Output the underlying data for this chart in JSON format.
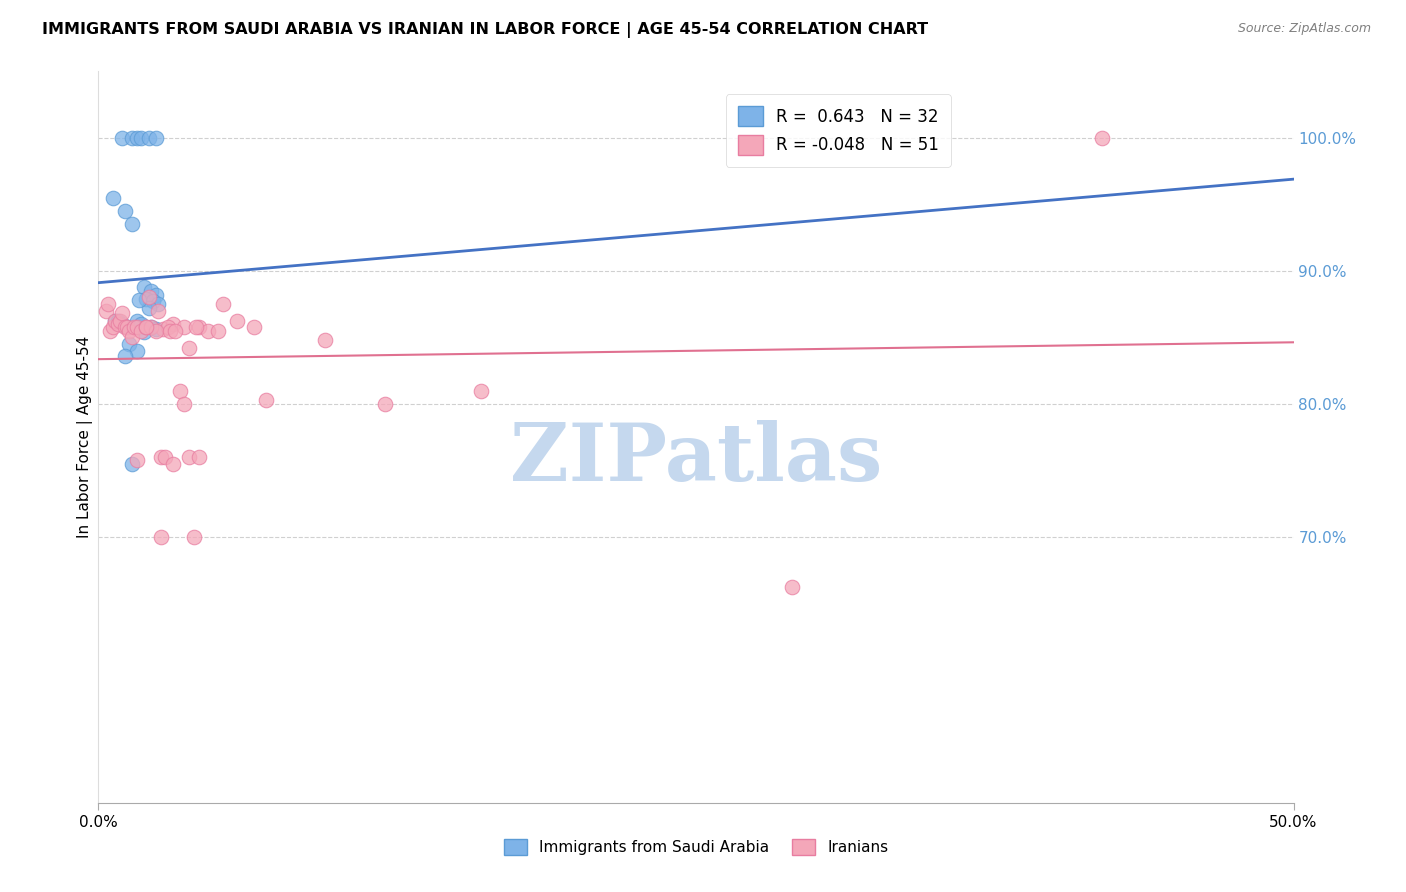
{
  "title": "IMMIGRANTS FROM SAUDI ARABIA VS IRANIAN IN LABOR FORCE | AGE 45-54 CORRELATION CHART",
  "source": "Source: ZipAtlas.com",
  "ylabel": "In Labor Force | Age 45-54",
  "xlim": [
    0.0,
    0.5
  ],
  "ylim": [
    0.5,
    1.05
  ],
  "legend_blue_R": " 0.643",
  "legend_blue_N": "32",
  "legend_pink_R": "-0.048",
  "legend_pink_N": "51",
  "blue_color": "#7EB3E8",
  "pink_color": "#F4A7B9",
  "blue_edge_color": "#5B9BD5",
  "pink_edge_color": "#E87DA0",
  "blue_line_color": "#4472C4",
  "pink_line_color": "#E07090",
  "watermark": "ZIPatlas",
  "watermark_color": "#C5D8EE",
  "background_color": "#FFFFFF",
  "grid_color": "#D0D0D0",
  "right_tick_color": "#5B9BD5",
  "title_color": "#000000",
  "source_color": "#808080",
  "ylabel_color": "#000000",
  "sa_x": [
    0.01,
    0.014,
    0.016,
    0.018,
    0.021,
    0.024,
    0.006,
    0.011,
    0.014,
    0.019,
    0.022,
    0.024,
    0.02,
    0.023,
    0.025,
    0.021,
    0.016,
    0.018,
    0.02,
    0.022,
    0.024,
    0.019,
    0.013,
    0.016,
    0.011,
    0.014,
    0.007,
    0.009,
    0.012,
    0.008,
    0.01,
    0.017
  ],
  "sa_y": [
    1.0,
    1.0,
    1.0,
    1.0,
    1.0,
    1.0,
    0.955,
    0.945,
    0.935,
    0.888,
    0.885,
    0.882,
    0.879,
    0.877,
    0.875,
    0.872,
    0.862,
    0.86,
    0.858,
    0.858,
    0.856,
    0.854,
    0.845,
    0.84,
    0.836,
    0.755,
    0.862,
    0.86,
    0.858,
    0.862,
    0.86,
    0.878
  ],
  "ir_x": [
    0.42,
    0.29,
    0.16,
    0.12,
    0.095,
    0.07,
    0.052,
    0.058,
    0.065,
    0.038,
    0.042,
    0.046,
    0.05,
    0.027,
    0.031,
    0.029,
    0.036,
    0.041,
    0.003,
    0.004,
    0.005,
    0.006,
    0.007,
    0.008,
    0.009,
    0.01,
    0.011,
    0.012,
    0.013,
    0.014,
    0.015,
    0.016,
    0.018,
    0.02,
    0.022,
    0.024,
    0.026,
    0.028,
    0.03,
    0.032,
    0.034,
    0.036,
    0.038,
    0.04,
    0.042,
    0.021,
    0.026,
    0.031,
    0.016,
    0.02,
    0.025
  ],
  "ir_y": [
    1.0,
    0.662,
    0.81,
    0.8,
    0.848,
    0.803,
    0.875,
    0.862,
    0.858,
    0.842,
    0.858,
    0.855,
    0.855,
    0.856,
    0.86,
    0.858,
    0.858,
    0.858,
    0.87,
    0.875,
    0.855,
    0.858,
    0.862,
    0.86,
    0.862,
    0.868,
    0.858,
    0.858,
    0.855,
    0.85,
    0.858,
    0.858,
    0.855,
    0.858,
    0.858,
    0.855,
    0.76,
    0.76,
    0.855,
    0.855,
    0.81,
    0.8,
    0.76,
    0.7,
    0.76,
    0.88,
    0.7,
    0.755,
    0.758,
    0.858,
    0.87
  ],
  "yticks": [
    1.0,
    0.9,
    0.8,
    0.7
  ],
  "ytick_labels": [
    "100.0%",
    "90.0%",
    "80.0%",
    "70.0%"
  ]
}
